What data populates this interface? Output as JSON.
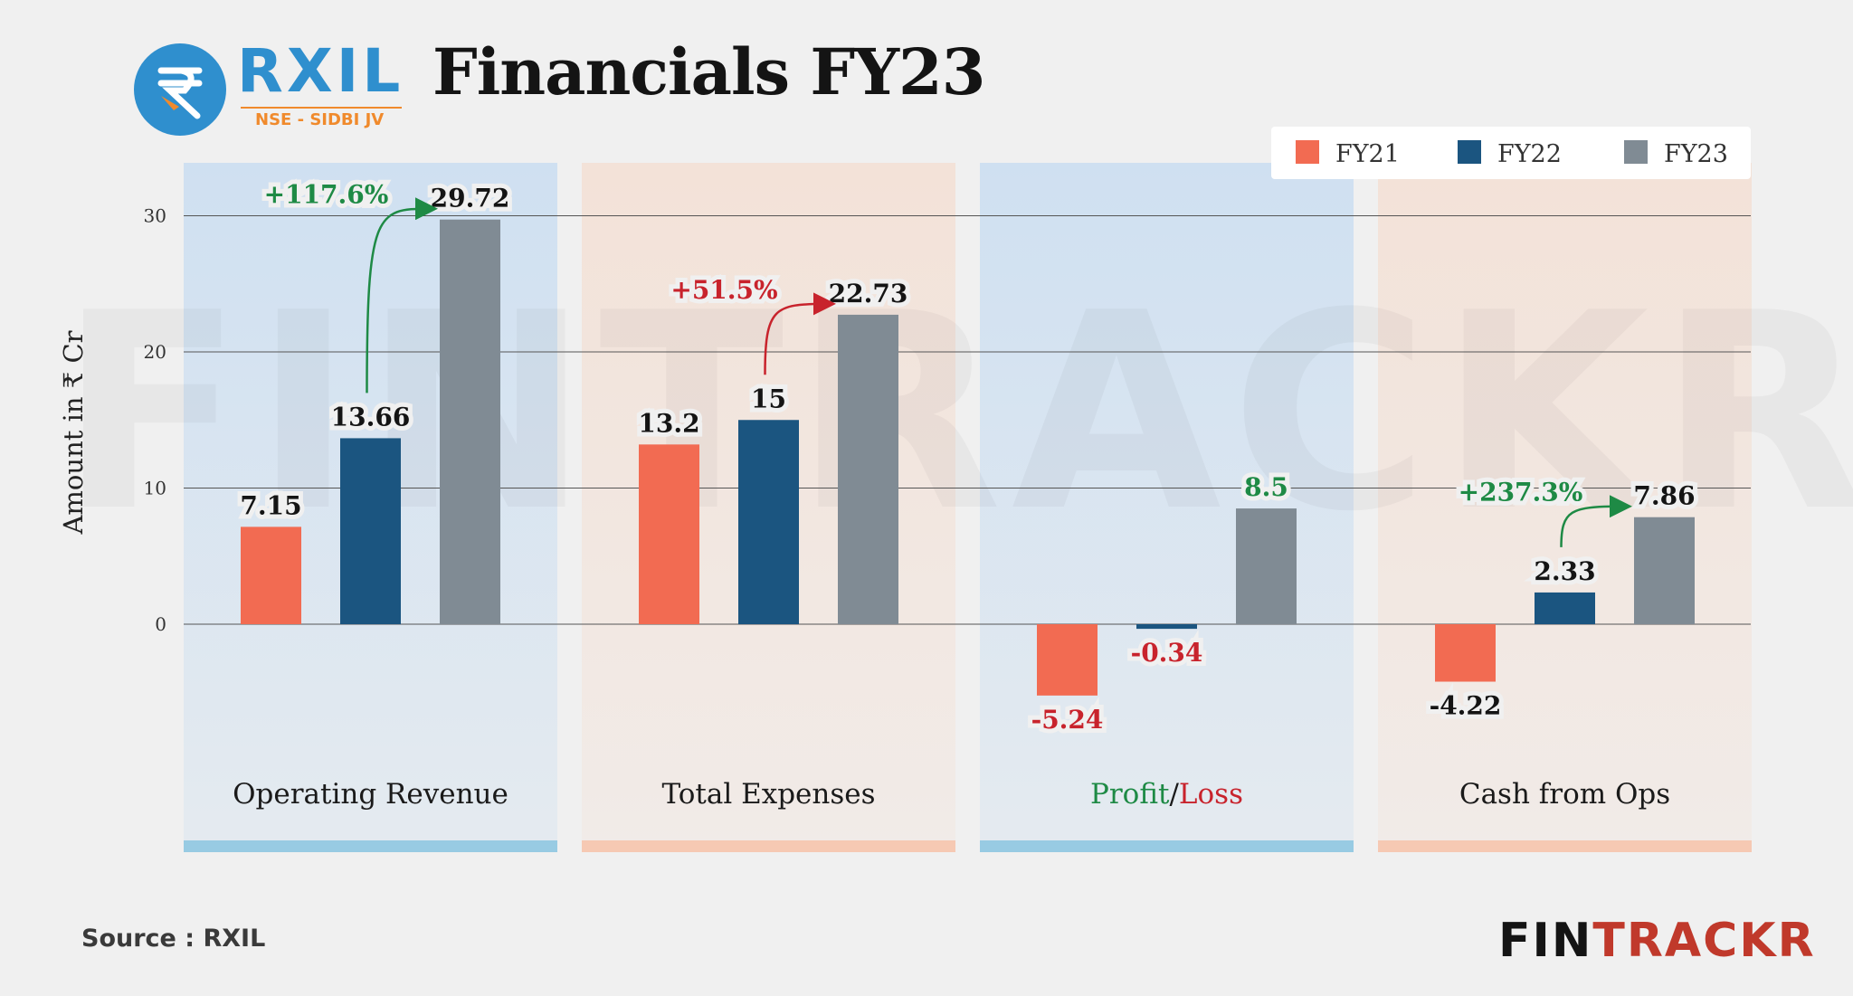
{
  "header": {
    "title": "Financials FY23",
    "logo_text": "RXIL",
    "logo_subtext": "NSE - SIDBI JV"
  },
  "footer": {
    "source": "Source : RXIL",
    "brand_part1": "FIN",
    "brand_part2": "TRACKR"
  },
  "watermark": "FINTRACKR",
  "colors": {
    "FY21": "#f26b52",
    "FY22": "#1b5580",
    "FY23": "#808b94",
    "positive": "#1e8a45",
    "negative": "#c8232c",
    "panel_blue": "#cfe0f1",
    "panel_peach": "#f3e2d8",
    "strip_blue": "#98cbe3",
    "strip_peach": "#f6c9b3"
  },
  "chart_data": {
    "type": "bar",
    "title": "Financials FY23",
    "ylabel": "Amount in ₹ Cr",
    "ylim": [
      -10,
      30
    ],
    "yticks": [
      0,
      10,
      20,
      30
    ],
    "legend_position": "top-right",
    "categories": [
      "Operating Revenue",
      "Total Expenses",
      "Profit/Loss",
      "Cash from Ops"
    ],
    "series": [
      {
        "name": "FY21",
        "values": [
          7.15,
          13.2,
          -5.24,
          -4.22
        ],
        "labels": [
          "7.15",
          "13.2",
          "-5.24",
          "-4.22"
        ]
      },
      {
        "name": "FY22",
        "values": [
          13.66,
          15,
          -0.34,
          2.33
        ],
        "labels": [
          "13.66",
          "15",
          "-0.34",
          "2.33"
        ]
      },
      {
        "name": "FY23",
        "values": [
          29.72,
          22.73,
          8.5,
          7.86
        ],
        "labels": [
          "29.72",
          "22.73",
          "8.5",
          "7.86"
        ]
      }
    ],
    "annotations": [
      {
        "category_index": 0,
        "text": "+117.6%",
        "sign": "positive"
      },
      {
        "category_index": 1,
        "text": "+51.5%",
        "sign": "negative"
      },
      {
        "category_index": 3,
        "text": "+237.3%",
        "sign": "positive"
      }
    ],
    "category_label_parts": [
      [
        {
          "text": "Operating Revenue",
          "sign": "neutral"
        }
      ],
      [
        {
          "text": "Total Expenses",
          "sign": "neutral"
        }
      ],
      [
        {
          "text": "Profit",
          "sign": "positive"
        },
        {
          "text": "/",
          "sign": "neutral"
        },
        {
          "text": "Loss",
          "sign": "negative"
        }
      ],
      [
        {
          "text": "Cash from Ops",
          "sign": "neutral"
        }
      ]
    ]
  }
}
